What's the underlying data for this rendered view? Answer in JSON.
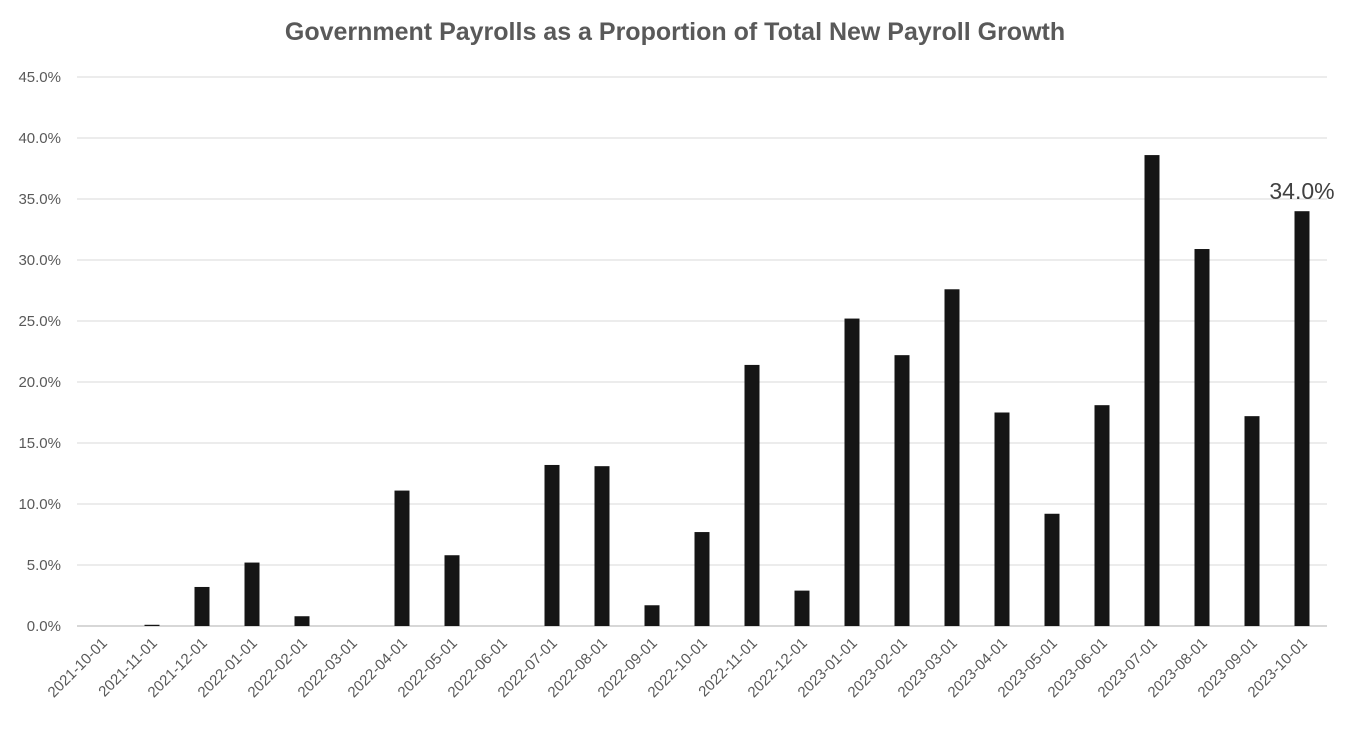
{
  "chart_data": {
    "type": "bar",
    "title": "Government Payrolls as a Proportion of Total New Payroll Growth",
    "xlabel": "",
    "ylabel": "",
    "ylim": [
      0,
      45
    ],
    "yticks": [
      0,
      5,
      10,
      15,
      20,
      25,
      30,
      35,
      40,
      45
    ],
    "ytick_labels": [
      "0.0%",
      "5.0%",
      "10.0%",
      "15.0%",
      "20.0%",
      "25.0%",
      "30.0%",
      "35.0%",
      "40.0%",
      "45.0%"
    ],
    "grid": true,
    "bar_color": "#151515",
    "categories": [
      "2021-10-01",
      "2021-11-01",
      "2021-12-01",
      "2022-01-01",
      "2022-02-01",
      "2022-03-01",
      "2022-04-01",
      "2022-05-01",
      "2022-06-01",
      "2022-07-01",
      "2022-08-01",
      "2022-09-01",
      "2022-10-01",
      "2022-11-01",
      "2022-12-01",
      "2023-01-01",
      "2023-02-01",
      "2023-03-01",
      "2023-04-01",
      "2023-05-01",
      "2023-06-01",
      "2023-07-01",
      "2023-08-01",
      "2023-09-01",
      "2023-10-01"
    ],
    "values": [
      0.0,
      0.1,
      3.2,
      5.2,
      0.8,
      0.0,
      11.1,
      5.8,
      0.0,
      13.2,
      13.1,
      1.7,
      7.7,
      21.4,
      2.9,
      25.2,
      22.2,
      27.6,
      17.5,
      9.2,
      18.1,
      38.6,
      30.9,
      17.2,
      34.0
    ],
    "annotations": [
      {
        "category": "2023-10-01",
        "label": "34.0%"
      }
    ]
  }
}
